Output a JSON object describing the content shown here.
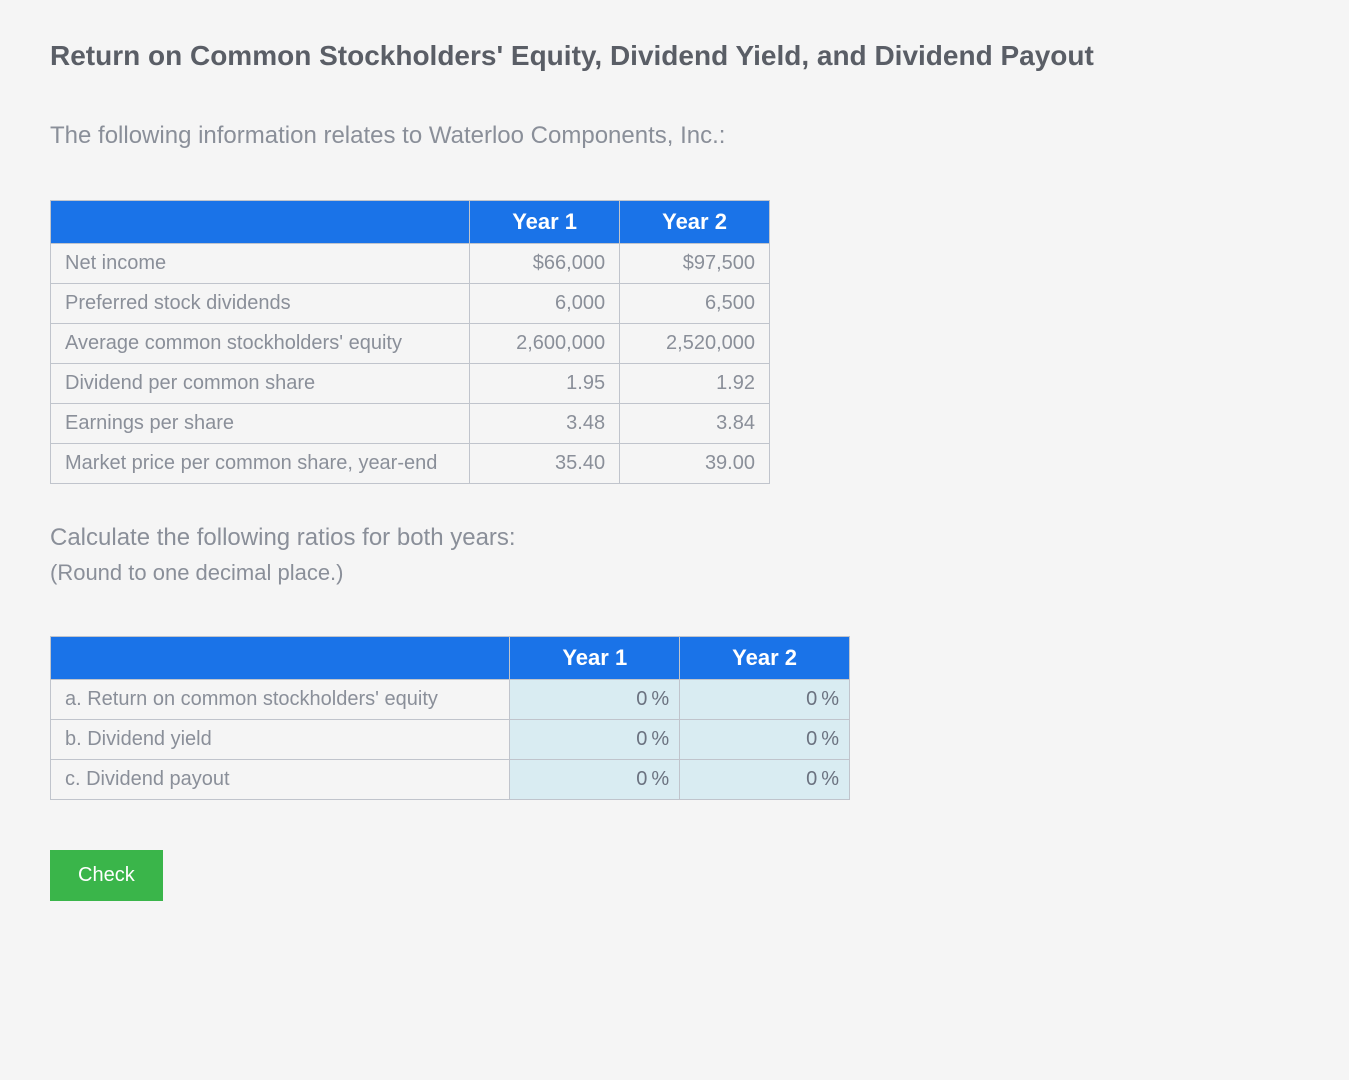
{
  "title": "Return on Common Stockholders' Equity, Dividend Yield, and Dividend Payout",
  "intro": "The following information relates to Waterloo Components, Inc.:",
  "dataTable": {
    "headers": {
      "year1": "Year 1",
      "year2": "Year 2"
    },
    "rows": [
      {
        "label": "Net income",
        "y1": "$66,000",
        "y2": "$97,500"
      },
      {
        "label": "Preferred stock dividends",
        "y1": "6,000",
        "y2": "6,500"
      },
      {
        "label": "Average common stockholders' equity",
        "y1": "2,600,000",
        "y2": "2,520,000"
      },
      {
        "label": "Dividend per common share",
        "y1": "1.95",
        "y2": "1.92"
      },
      {
        "label": "Earnings per share",
        "y1": "3.48",
        "y2": "3.84"
      },
      {
        "label": "Market price per common share, year-end",
        "y1": "35.40",
        "y2": "39.00"
      }
    ]
  },
  "instructions": "Calculate the following ratios for both years:",
  "instructionsSub": "(Round to one decimal place.)",
  "answerTable": {
    "headers": {
      "year1": "Year 1",
      "year2": "Year 2"
    },
    "rows": [
      {
        "label": "a. Return on common stockholders' equity",
        "y1": "0",
        "y2": "0"
      },
      {
        "label": "b. Dividend yield",
        "y1": "0",
        "y2": "0"
      },
      {
        "label": "c. Dividend payout",
        "y1": "0",
        "y2": "0"
      }
    ],
    "unit": "%"
  },
  "checkLabel": "Check",
  "colors": {
    "headerBg": "#1a73e8",
    "headerText": "#ffffff",
    "border": "#c0c4cc",
    "textMuted": "#8a8f99",
    "inputBg": "#d9ecf2",
    "buttonBg": "#3ab54a",
    "pageBg": "#f5f5f5"
  }
}
